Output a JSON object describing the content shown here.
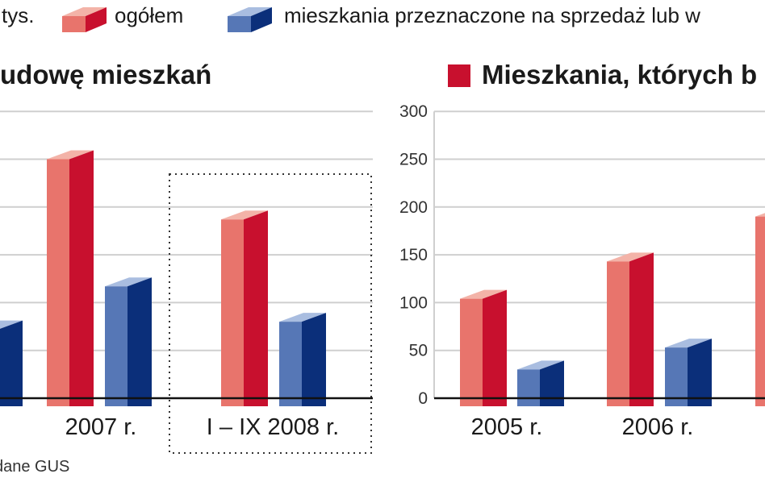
{
  "legend": {
    "unit_fragment": "tys.",
    "series_1": "ogółem",
    "series_2": "mieszkania przeznaczone na sprzedaż lub w"
  },
  "colors": {
    "ogolem_front": "#e8746c",
    "ogolem_side": "#c8102e",
    "ogolem_top": "#f3b3a8",
    "sprzedaz_front": "#5677b6",
    "sprzedaz_side": "#0b2f7a",
    "sprzedaz_top": "#a9bde0",
    "title_square": "#c8102e",
    "grid": "#cfcfcf",
    "baseline": "#111111"
  },
  "left_panel": {
    "title": "udowę mieszkań",
    "categories": [
      "2007 r.",
      "I – IX 2008 r."
    ],
    "source": "dane GUS"
  },
  "right_panel": {
    "title": "Mieszkania, których b",
    "categories": [
      "2005 r.",
      "2006 r."
    ]
  },
  "chart_data": [
    {
      "type": "bar",
      "title": "",
      "ylim": [
        0,
        300
      ],
      "categories": [
        "",
        "2007 r.",
        "I – IX 2008 r."
      ],
      "series": [
        {
          "name": "ogółem",
          "values": [
            null,
            250,
            187
          ]
        },
        {
          "name": "mieszkania przeznaczone na sprzedaż lub w",
          "values": [
            72,
            117,
            80
          ]
        }
      ],
      "highlighted_category": "I – IX 2008 r.",
      "grid": true
    },
    {
      "type": "bar",
      "title": "Mieszkania, których b",
      "ylim": [
        0,
        300
      ],
      "yticks": [
        0,
        50,
        100,
        150,
        200,
        250,
        300
      ],
      "categories": [
        "2005 r.",
        "2006 r.",
        ""
      ],
      "series": [
        {
          "name": "ogółem",
          "values": [
            104,
            143,
            190
          ]
        },
        {
          "name": "mieszkania przeznaczone na sprzedaż lub w",
          "values": [
            30,
            53,
            null
          ]
        }
      ],
      "grid": true
    }
  ]
}
